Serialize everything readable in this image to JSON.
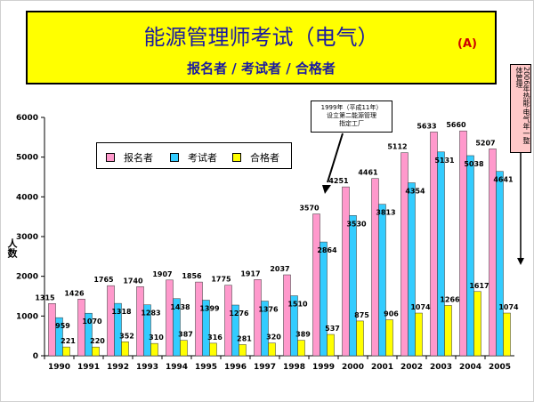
{
  "header": {
    "title": "能源管理师考试（电气）",
    "tag": "(A)",
    "subtitle": "报名者 / 考试者 / 合格者"
  },
  "side_note": "2006年热能·电气年一整体管理",
  "callout": {
    "line1": "1999年（平成11年）",
    "line2": "设立第二能源管理",
    "line3": "指定工厂"
  },
  "colors": {
    "applicants": "#ff99cc",
    "examinees": "#33ccff",
    "passers": "#ffff00"
  },
  "chart_data": {
    "type": "bar",
    "categories": [
      "1990",
      "1991",
      "1992",
      "1993",
      "1994",
      "1995",
      "1996",
      "1997",
      "1998",
      "1999",
      "2000",
      "2001",
      "2002",
      "2003",
      "2004",
      "2005"
    ],
    "series": [
      {
        "name": "报名者",
        "values": [
          1315,
          1426,
          1765,
          1740,
          1907,
          1856,
          1775,
          1917,
          2037,
          3570,
          4251,
          4461,
          5112,
          5633,
          5660,
          5207
        ]
      },
      {
        "name": "考试者",
        "values": [
          959,
          1070,
          1318,
          1283,
          1438,
          1399,
          1276,
          1376,
          1510,
          2864,
          3530,
          3813,
          4354,
          5131,
          5038,
          4641
        ]
      },
      {
        "name": "合格者",
        "values": [
          221,
          220,
          352,
          310,
          387,
          316,
          281,
          320,
          389,
          537,
          875,
          906,
          1074,
          1266,
          1617,
          1074
        ]
      }
    ],
    "ylabel": "人数",
    "ylim": [
      0,
      6000
    ],
    "yticks": [
      0,
      1000,
      2000,
      3000,
      4000,
      5000,
      6000
    ],
    "legend_position": "top-left"
  }
}
